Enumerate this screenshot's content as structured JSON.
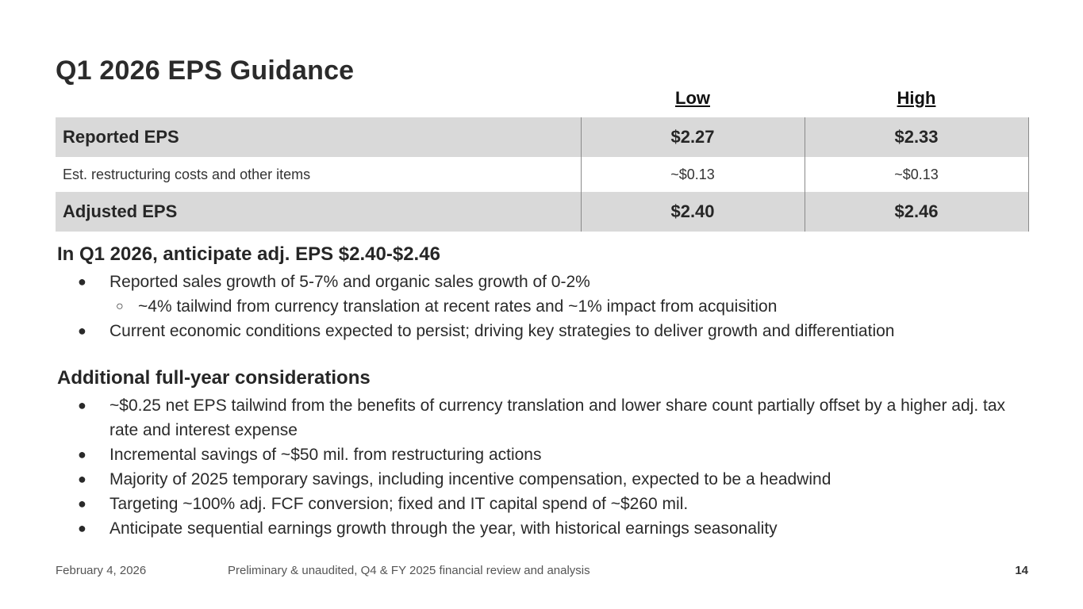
{
  "slide": {
    "title": "Q1 2026 EPS Guidance",
    "columns": {
      "low": "Low",
      "high": "High"
    },
    "rows": [
      {
        "label": "Reported EPS",
        "low": "$2.27",
        "high": "$2.33"
      },
      {
        "label": "Est. restructuring costs and other items",
        "low": "~$0.13",
        "high": "~$0.13"
      },
      {
        "label": "Adjusted EPS",
        "low": "$2.40",
        "high": "$2.46"
      }
    ],
    "q1_section": {
      "heading": "In Q1 2026, anticipate adj. EPS $2.40-$2.46",
      "bullets": [
        "Reported sales growth of 5-7% and organic sales growth of 0-2%",
        "~4% tailwind from currency translation at recent rates and ~1% impact from acquisition",
        "Current economic conditions expected to persist; driving key strategies to deliver growth and differentiation"
      ]
    },
    "fy_section": {
      "heading": "Additional full-year considerations",
      "bullets": [
        "~$0.25 net EPS tailwind from the benefits of currency translation and lower share count partially offset by a higher adj. tax rate and interest expense",
        "Incremental savings of ~$50 mil. from restructuring actions",
        "Majority of 2025 temporary savings, including incentive compensation, expected to be a headwind",
        "Targeting ~100% adj. FCF conversion; fixed and IT capital spend of ~$260 mil.",
        "Anticipate sequential earnings growth through the year, with historical earnings seasonality"
      ]
    },
    "bullet_glyphs": {
      "main": "●",
      "sub": "○"
    },
    "footer": {
      "date": "February 4, 2026",
      "description": "Preliminary & unaudited, Q4 & FY 2025 financial review and analysis",
      "page_number": "14"
    },
    "colors": {
      "table_shade": "#d9d9d9",
      "text": "#262626"
    }
  }
}
